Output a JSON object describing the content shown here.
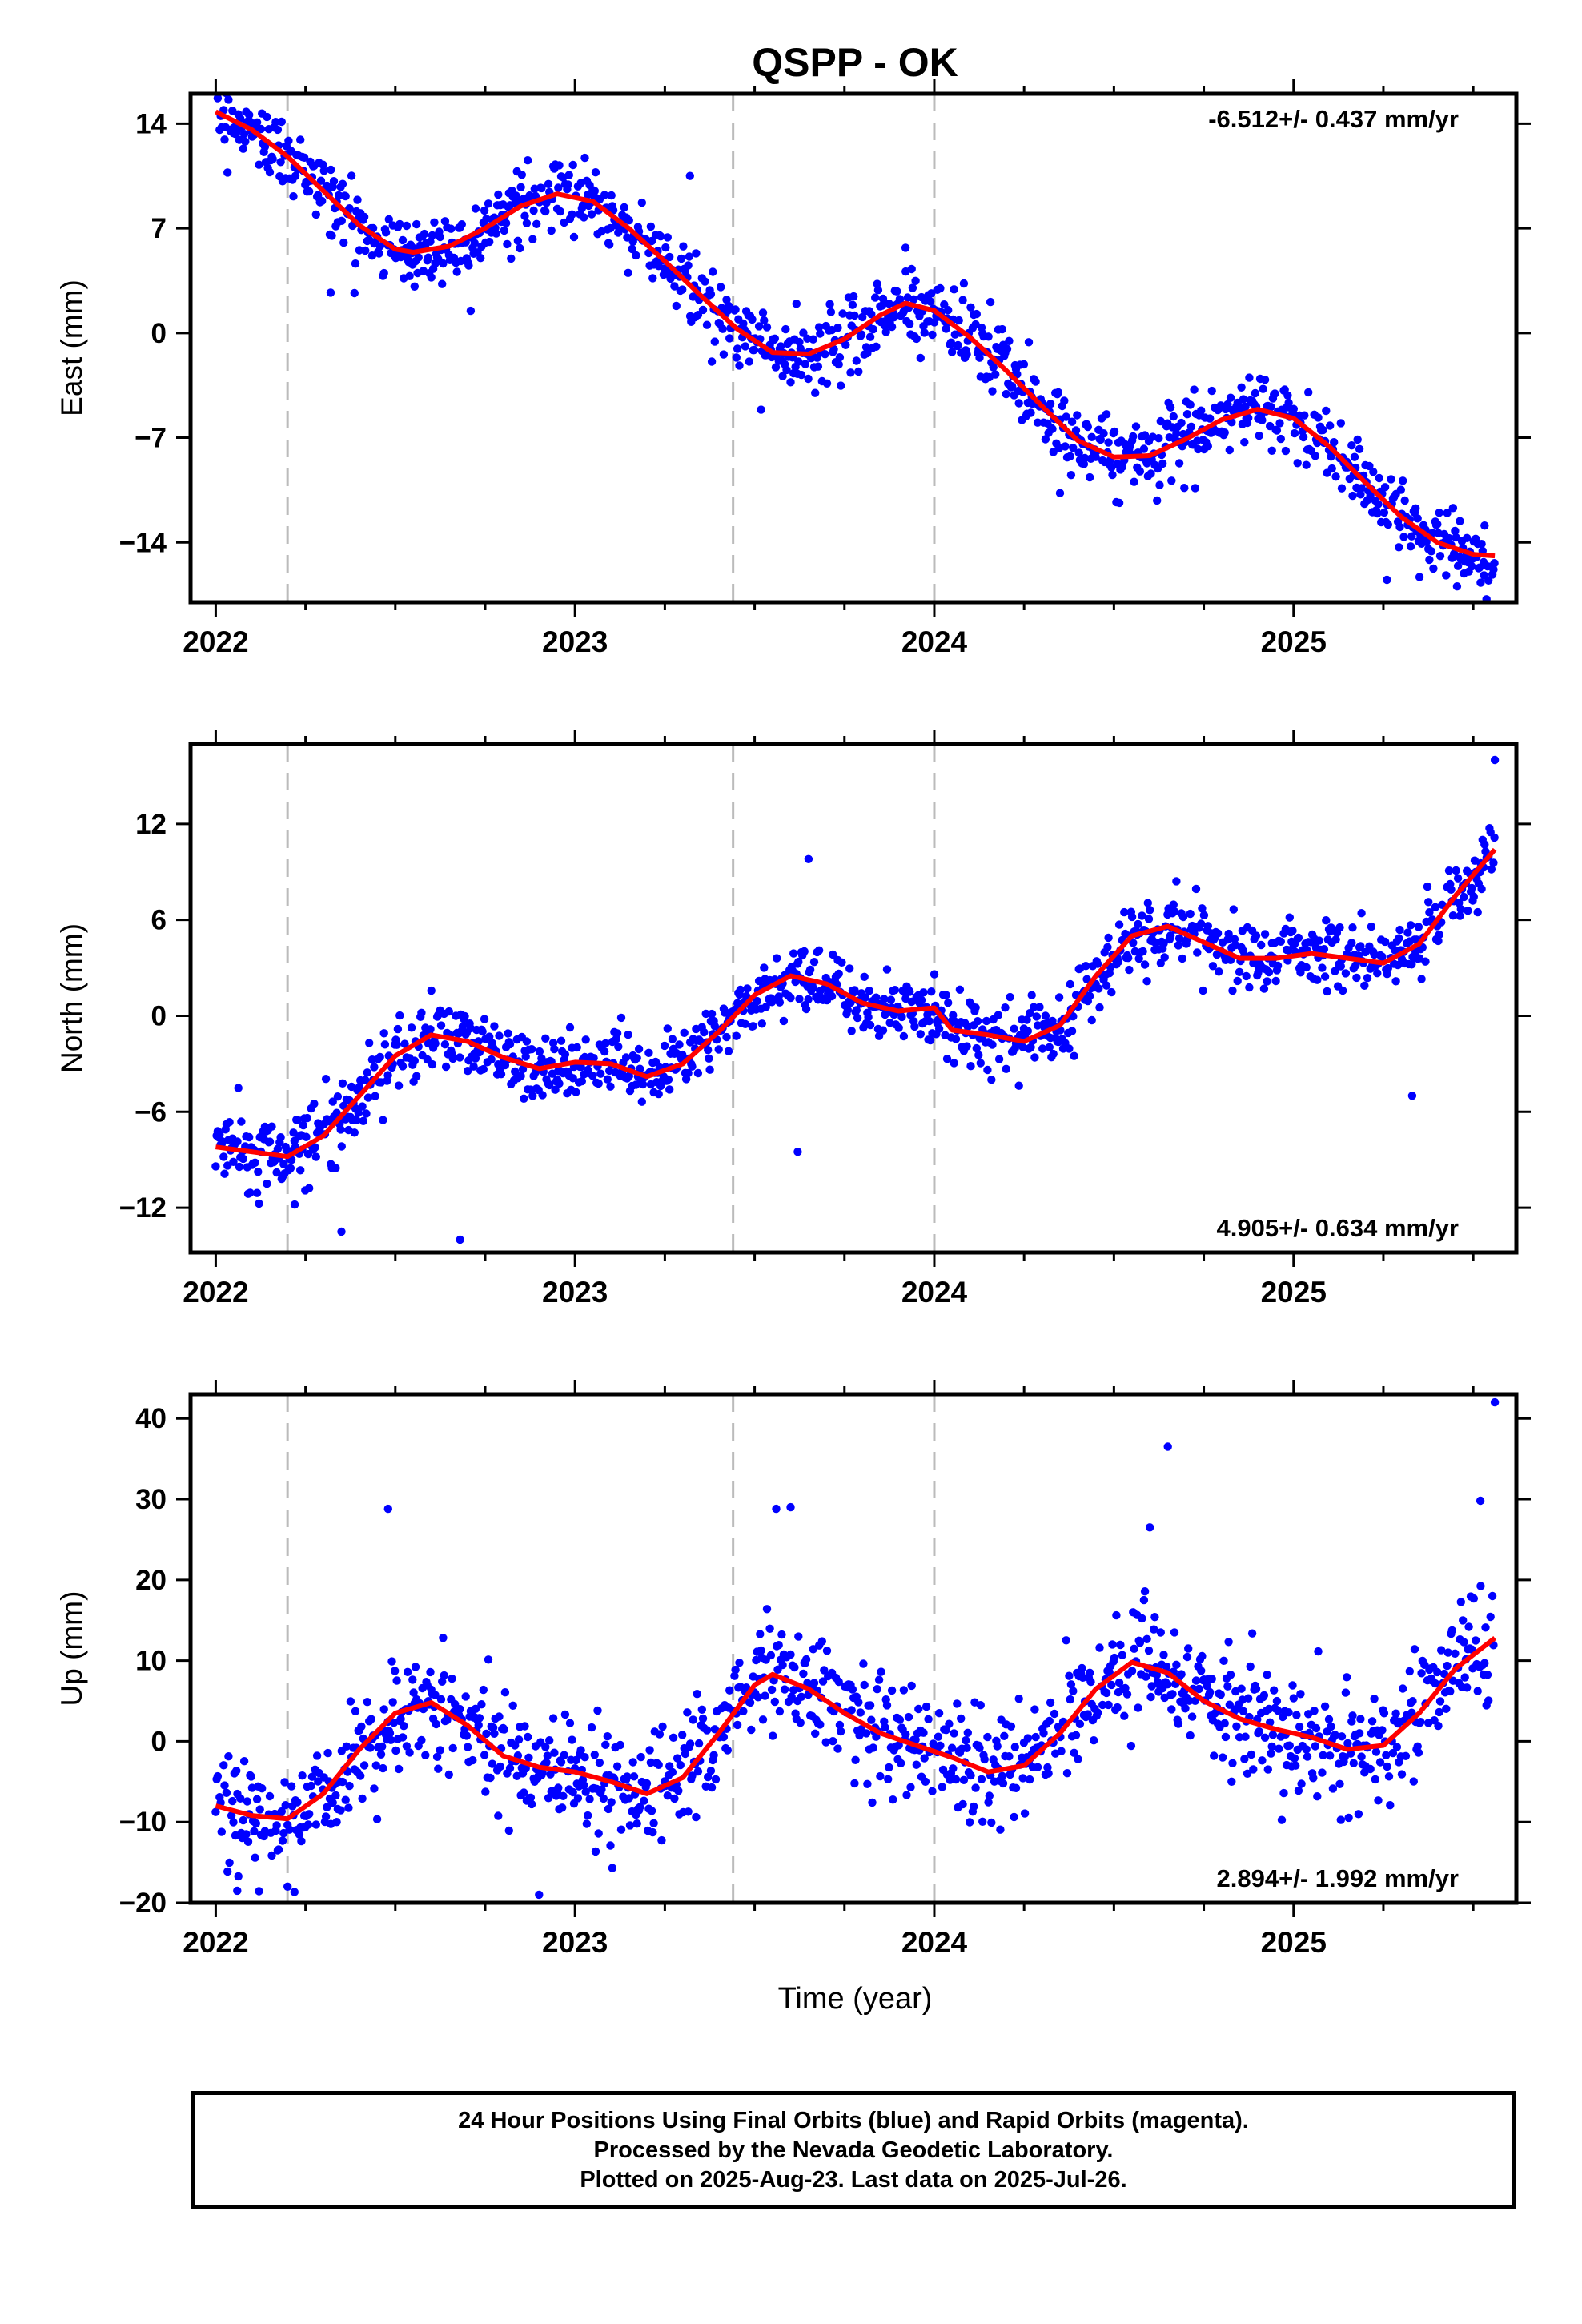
{
  "chart_data": {
    "title": "QSPP - OK",
    "type": "scatter",
    "xlabel": "Time (year)",
    "x_ticks": [
      "2022",
      "2023",
      "2024",
      "2025"
    ],
    "xlim": [
      2021.93,
      2025.62
    ],
    "event_lines_x": [
      2022.2,
      2023.44,
      2024.0
    ],
    "colors": {
      "points": "#0000ff",
      "fit": "#ff0000",
      "event_line": "#bbbbbb"
    },
    "panels": [
      {
        "name": "east",
        "ylabel": "East (mm)",
        "ylim": [
          -18,
          16
        ],
        "yticks": [
          14,
          7,
          0,
          -7,
          -14
        ],
        "ytick_labels": [
          "14",
          "7",
          "0",
          "−7",
          "−14"
        ],
        "velocity": "-6.512+/- 0.437 mm/yr",
        "velocity_position": "top-right",
        "scatter_std": 1.2,
        "fit_curve": [
          [
            2022.0,
            14.8
          ],
          [
            2022.1,
            13.6
          ],
          [
            2022.2,
            11.8
          ],
          [
            2022.3,
            9.5
          ],
          [
            2022.4,
            7.2
          ],
          [
            2022.5,
            5.6
          ],
          [
            2022.55,
            5.4
          ],
          [
            2022.65,
            5.8
          ],
          [
            2022.75,
            7.0
          ],
          [
            2022.85,
            8.5
          ],
          [
            2022.95,
            9.3
          ],
          [
            2023.05,
            8.8
          ],
          [
            2023.15,
            7.0
          ],
          [
            2023.25,
            4.8
          ],
          [
            2023.35,
            2.5
          ],
          [
            2023.45,
            0.3
          ],
          [
            2023.55,
            -1.3
          ],
          [
            2023.65,
            -1.4
          ],
          [
            2023.75,
            -0.4
          ],
          [
            2023.85,
            1.2
          ],
          [
            2023.92,
            2.0
          ],
          [
            2024.0,
            1.5
          ],
          [
            2024.1,
            -0.3
          ],
          [
            2024.2,
            -2.5
          ],
          [
            2024.3,
            -4.9
          ],
          [
            2024.4,
            -7.2
          ],
          [
            2024.5,
            -8.3
          ],
          [
            2024.6,
            -8.2
          ],
          [
            2024.7,
            -7.1
          ],
          [
            2024.8,
            -5.8
          ],
          [
            2024.9,
            -5.1
          ],
          [
            2025.0,
            -5.7
          ],
          [
            2025.1,
            -7.6
          ],
          [
            2025.2,
            -10.0
          ],
          [
            2025.3,
            -12.3
          ],
          [
            2025.4,
            -14.0
          ],
          [
            2025.5,
            -14.8
          ],
          [
            2025.56,
            -14.9
          ]
        ],
        "outliers": [
          [
            2023.32,
            10.5
          ],
          [
            2022.32,
            2.7
          ],
          [
            2023.92,
            5.7
          ],
          [
            2025.26,
            -16.5
          ],
          [
            2025.53,
            -16.2
          ],
          [
            2024.35,
            -10.7
          ],
          [
            2024.62,
            -11.2
          ]
        ]
      },
      {
        "name": "north",
        "ylabel": "North (mm)",
        "ylim": [
          -14.8,
          17
        ],
        "yticks": [
          12,
          6,
          0,
          -6,
          -12
        ],
        "ytick_labels": [
          "12",
          "6",
          "0",
          "−6",
          "−12"
        ],
        "velocity": "4.905+/- 0.634 mm/yr",
        "velocity_position": "bottom-right",
        "scatter_std": 1.1,
        "fit_curve": [
          [
            2022.0,
            -8.2
          ],
          [
            2022.1,
            -8.5
          ],
          [
            2022.2,
            -8.8
          ],
          [
            2022.3,
            -7.5
          ],
          [
            2022.4,
            -5.0
          ],
          [
            2022.5,
            -2.5
          ],
          [
            2022.6,
            -1.2
          ],
          [
            2022.7,
            -1.6
          ],
          [
            2022.8,
            -2.6
          ],
          [
            2022.9,
            -3.3
          ],
          [
            2023.0,
            -2.9
          ],
          [
            2023.1,
            -3.0
          ],
          [
            2023.2,
            -3.8
          ],
          [
            2023.3,
            -3.0
          ],
          [
            2023.4,
            -1.0
          ],
          [
            2023.5,
            1.3
          ],
          [
            2023.6,
            2.5
          ],
          [
            2023.7,
            2.0
          ],
          [
            2023.8,
            0.8
          ],
          [
            2023.9,
            0.3
          ],
          [
            2024.0,
            0.5
          ],
          [
            2024.05,
            -0.9
          ],
          [
            2024.15,
            -1.2
          ],
          [
            2024.25,
            -1.6
          ],
          [
            2024.35,
            -0.6
          ],
          [
            2024.45,
            2.5
          ],
          [
            2024.55,
            5.0
          ],
          [
            2024.65,
            5.6
          ],
          [
            2024.75,
            4.6
          ],
          [
            2024.85,
            3.6
          ],
          [
            2024.95,
            3.6
          ],
          [
            2025.05,
            3.9
          ],
          [
            2025.15,
            3.6
          ],
          [
            2025.25,
            3.3
          ],
          [
            2025.35,
            4.5
          ],
          [
            2025.45,
            7.5
          ],
          [
            2025.56,
            10.4
          ]
        ],
        "outliers": [
          [
            2022.35,
            -13.5
          ],
          [
            2022.68,
            -14.0
          ],
          [
            2025.56,
            16.0
          ],
          [
            2023.62,
            -8.5
          ],
          [
            2023.65,
            9.8
          ],
          [
            2025.33,
            -5.0
          ],
          [
            2022.22,
            -11.8
          ]
        ]
      },
      {
        "name": "up",
        "ylabel": "Up (mm)",
        "ylim": [
          -20,
          43
        ],
        "yticks": [
          40,
          30,
          20,
          10,
          0,
          -10,
          -20
        ],
        "ytick_labels": [
          "40",
          "30",
          "20",
          "10",
          "0",
          "−10",
          "−20"
        ],
        "velocity": "2.894+/- 1.992 mm/yr",
        "velocity_position": "bottom-right",
        "scatter_std": 3.5,
        "fit_curve": [
          [
            2022.0,
            -8.0
          ],
          [
            2022.1,
            -9.2
          ],
          [
            2022.2,
            -9.6
          ],
          [
            2022.3,
            -6.5
          ],
          [
            2022.4,
            -1.0
          ],
          [
            2022.5,
            3.5
          ],
          [
            2022.6,
            4.8
          ],
          [
            2022.7,
            2.0
          ],
          [
            2022.8,
            -1.8
          ],
          [
            2022.9,
            -3.2
          ],
          [
            2023.0,
            -3.8
          ],
          [
            2023.1,
            -5.0
          ],
          [
            2023.2,
            -6.5
          ],
          [
            2023.3,
            -4.5
          ],
          [
            2023.4,
            1.0
          ],
          [
            2023.5,
            7.0
          ],
          [
            2023.55,
            8.3
          ],
          [
            2023.65,
            6.5
          ],
          [
            2023.75,
            3.5
          ],
          [
            2023.85,
            1.0
          ],
          [
            2023.95,
            -0.5
          ],
          [
            2024.05,
            -2.0
          ],
          [
            2024.15,
            -3.8
          ],
          [
            2024.25,
            -3.0
          ],
          [
            2024.35,
            1.0
          ],
          [
            2024.45,
            6.5
          ],
          [
            2024.55,
            9.8
          ],
          [
            2024.65,
            8.5
          ],
          [
            2024.75,
            5.0
          ],
          [
            2024.85,
            2.8
          ],
          [
            2024.95,
            1.5
          ],
          [
            2025.05,
            0.5
          ],
          [
            2025.15,
            -1.0
          ],
          [
            2025.25,
            -0.5
          ],
          [
            2025.35,
            3.5
          ],
          [
            2025.45,
            9.0
          ],
          [
            2025.56,
            12.8
          ]
        ],
        "outliers": [
          [
            2022.48,
            28.8
          ],
          [
            2023.56,
            28.8
          ],
          [
            2023.6,
            29.0
          ],
          [
            2024.65,
            36.5
          ],
          [
            2024.6,
            26.5
          ],
          [
            2025.56,
            42.0
          ],
          [
            2025.52,
            29.8
          ],
          [
            2022.9,
            -19.0
          ],
          [
            2022.2,
            -18.0
          ],
          [
            2022.06,
            -18.5
          ]
        ]
      }
    ]
  },
  "footer": {
    "line1": "24 Hour Positions Using Final Orbits (blue) and Rapid Orbits (magenta).",
    "line2": "Processed by the Nevada Geodetic Laboratory.",
    "line3": "Plotted on 2025-Aug-23. Last data on 2025-Jul-26."
  }
}
